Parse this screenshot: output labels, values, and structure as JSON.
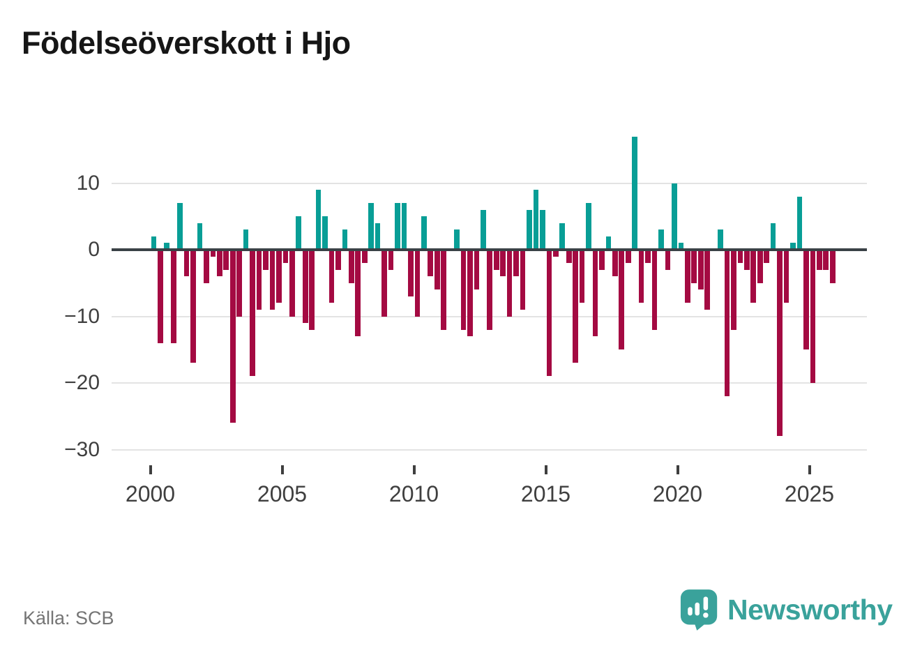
{
  "title": "Födelseöverskott i Hjo",
  "source": "Källa: SCB",
  "branding": {
    "name": "Newsworthy"
  },
  "colors": {
    "positive": "#089e96",
    "negative": "#a40a42",
    "axis": "#3a4146",
    "grid": "#e3e3e3",
    "tick_text": "#3f3f3f",
    "title_text": "#161616",
    "source_text": "#757575",
    "brand": "#3aa29b"
  },
  "chart_data": {
    "type": "bar",
    "title": "Födelseöverskott i Hjo",
    "xlabel": "",
    "ylabel": "",
    "frequency": "quarterly",
    "x_start": {
      "year": 2000,
      "quarter": 1
    },
    "x_end": {
      "year": 2025,
      "quarter": 4
    },
    "x_tick_years": [
      2000,
      2005,
      2010,
      2015,
      2020,
      2025
    ],
    "y_ticks": [
      10,
      0,
      -10,
      -20,
      -30
    ],
    "ylim": [
      -30,
      18
    ],
    "grid": true,
    "legend": "none",
    "series": [
      {
        "name": "Födelseöverskott",
        "values": [
          2,
          -14,
          1,
          -14,
          7,
          -4,
          -17,
          4,
          -5,
          -1,
          -4,
          -3,
          -26,
          -10,
          3,
          -19,
          -9,
          -3,
          -9,
          -8,
          -2,
          -10,
          5,
          -11,
          -12,
          9,
          5,
          -8,
          -3,
          3,
          -5,
          -13,
          -2,
          7,
          4,
          -10,
          -3,
          7,
          7,
          -7,
          -10,
          5,
          -4,
          -6,
          -12,
          0,
          3,
          -12,
          -13,
          -6,
          6,
          -12,
          -3,
          -4,
          -10,
          -4,
          -9,
          6,
          9,
          6,
          -19,
          -1,
          4,
          -2,
          -17,
          -8,
          7,
          -13,
          -3,
          2,
          -4,
          -15,
          -2,
          17,
          -8,
          -2,
          -12,
          3,
          -3,
          10,
          1,
          -8,
          -5,
          -6,
          -9,
          0,
          3,
          -22,
          -12,
          -2,
          -3,
          -8,
          -5,
          -2,
          4,
          -28,
          -8,
          1,
          8,
          -15,
          -20,
          -3,
          -3,
          -5
        ]
      }
    ]
  }
}
